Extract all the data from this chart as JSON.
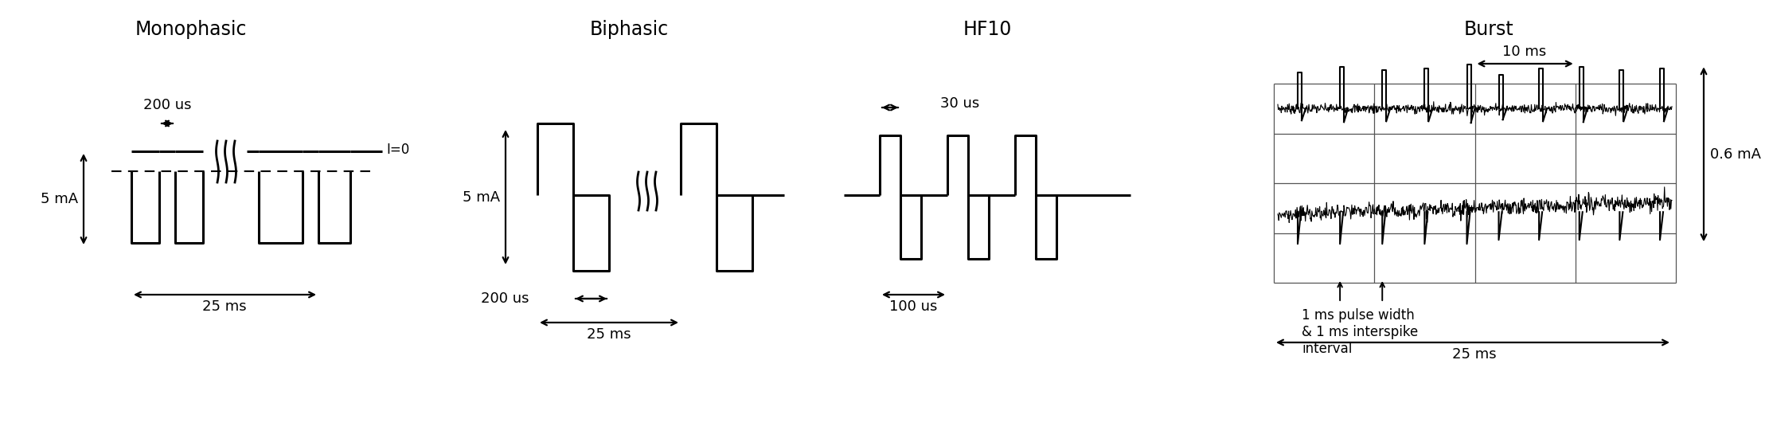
{
  "title_monophasic": "Monophasic",
  "title_biphasic": "Biphasic",
  "title_hf10": "HF10",
  "title_burst": "Burst",
  "label_200us_mono": "200 us",
  "label_25ms_mono": "25 ms",
  "label_5ma_mono": "5 mA",
  "label_i0": "I=0",
  "label_200us_bi": "200 us",
  "label_25ms_bi": "25 ms",
  "label_5ma_bi": "5 mA",
  "label_30us_hf": "30 us",
  "label_100us_hf": "100 us",
  "label_1ms_burst": "1 ms pulse width\n& 1 ms interspike\ninterval",
  "label_10ms_burst": "10 ms",
  "label_25ms_burst": "25 ms",
  "label_06ma_burst": "0.6 mA",
  "bg_color": "#ffffff",
  "line_color": "#000000",
  "title_fontsize": 17,
  "label_fontsize": 13
}
